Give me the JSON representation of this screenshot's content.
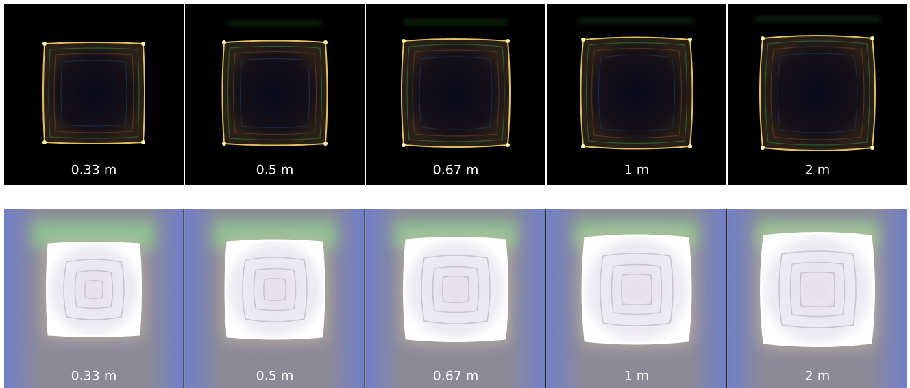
{
  "rows": [
    {
      "panels": [
        {
          "label": "0.33 m"
        },
        {
          "label": "0.5 m"
        },
        {
          "label": "0.67 m"
        },
        {
          "label": "1 m"
        },
        {
          "label": "2 m"
        }
      ]
    },
    {
      "panels": [
        {
          "label": "0.33 m"
        },
        {
          "label": "0.5 m"
        },
        {
          "label": "0.67 m"
        },
        {
          "label": "1 m"
        },
        {
          "label": "2 m"
        }
      ]
    }
  ]
}
